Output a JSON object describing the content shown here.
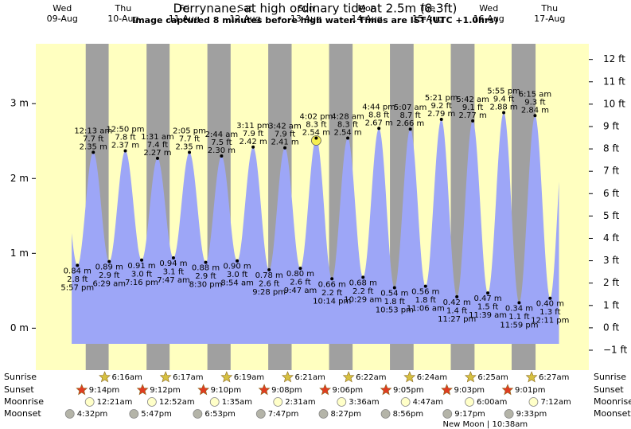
{
  "chart_data": {
    "type": "tide",
    "title": "Derrynane: at high  ordinary tide at 2.5m (8.3ft)",
    "subtitle": "Image captured 8 minutes before high water. Times are IST (UTC +1.0hrs)",
    "ylim": [
      -0.56,
      3.8
    ],
    "yticks": [
      {
        "value": 0,
        "label": "0 m"
      },
      {
        "value": 1,
        "label": "1 m"
      },
      {
        "value": 2,
        "label": "2 m"
      },
      {
        "value": 3,
        "label": "3 m"
      }
    ],
    "y2lim": [
      -1.89,
      12.7
    ],
    "y2ticks": [
      {
        "value": -1,
        "label": "−1 ft"
      },
      {
        "value": 0,
        "label": "0 ft"
      },
      {
        "value": 1,
        "label": "1 ft"
      },
      {
        "value": 2,
        "label": "2 ft"
      },
      {
        "value": 3,
        "label": "3 ft"
      },
      {
        "value": 4,
        "label": "4 ft"
      },
      {
        "value": 5,
        "label": "5 ft"
      },
      {
        "value": 6,
        "label": "6 ft"
      },
      {
        "value": 7,
        "label": "7 ft"
      },
      {
        "value": 8,
        "label": "8 ft"
      },
      {
        "value": 9,
        "label": "9 ft"
      },
      {
        "value": 10,
        "label": "10 ft"
      },
      {
        "value": 11,
        "label": "11 ft"
      },
      {
        "value": 12,
        "label": "12 ft"
      }
    ],
    "row_labels": {
      "sunrise": "Sunrise",
      "sunset": "Sunset",
      "moonrise": "Moonrise",
      "moonset": "Moonset"
    },
    "colors": {
      "day": "#ffffc0",
      "night": "#a0a0a0",
      "water": "#9da6f7",
      "header": "#e00000",
      "sunrise": "#d6c040",
      "sunset": "#e03c20",
      "moonrise": "#ffffc8",
      "moonset": "#b4b4a8"
    },
    "highlight": {
      "day": 4,
      "tide": 2,
      "color": "#f5ef50"
    },
    "days": [
      {
        "weekday": "Wed",
        "date": "09-Aug",
        "sunset": "9:14pm",
        "moonset": "4:32pm",
        "tides": [
          {
            "time": "5:57 pm",
            "height": 0.84,
            "height_label": "0.84 m",
            "feet_label": "2.8 ft"
          }
        ]
      },
      {
        "weekday": "Thu",
        "date": "10-Aug",
        "sunrise": "6:16am",
        "sunset": "9:12pm",
        "moonrise": "12:21am",
        "moonset": "5:47pm",
        "tides": [
          {
            "time": "12:13 am",
            "height": 2.35,
            "height_label": "2.35 m",
            "feet_label": "7.7 ft"
          },
          {
            "time": "6:29 am",
            "height": 0.89,
            "height_label": "0.89 m",
            "feet_label": "2.9 ft"
          },
          {
            "time": "12:50 pm",
            "height": 2.37,
            "height_label": "2.37 m",
            "feet_label": "7.8 ft"
          },
          {
            "time": "7:16 pm",
            "height": 0.91,
            "height_label": "0.91 m",
            "feet_label": "3.0 ft"
          }
        ]
      },
      {
        "weekday": "Fri",
        "date": "11-Aug",
        "sunrise": "6:17am",
        "sunset": "9:10pm",
        "moonrise": "12:52am",
        "moonset": "6:53pm",
        "tides": [
          {
            "time": "1:31 am",
            "height": 2.27,
            "height_label": "2.27 m",
            "feet_label": "7.4 ft"
          },
          {
            "time": "7:47 am",
            "height": 0.94,
            "height_label": "0.94 m",
            "feet_label": "3.1 ft"
          },
          {
            "time": "2:05 pm",
            "height": 2.35,
            "height_label": "2.35 m",
            "feet_label": "7.7 ft"
          },
          {
            "time": "8:30 pm",
            "height": 0.88,
            "height_label": "0.88 m",
            "feet_label": "2.9 ft"
          }
        ]
      },
      {
        "weekday": "Sat",
        "date": "12-Aug",
        "sunrise": "6:19am",
        "sunset": "9:08pm",
        "moonrise": "1:35am",
        "moonset": "7:47pm",
        "tides": [
          {
            "time": "2:44 am",
            "height": 2.3,
            "height_label": "2.30 m",
            "feet_label": "7.5 ft"
          },
          {
            "time": "8:54 am",
            "height": 0.9,
            "height_label": "0.90 m",
            "feet_label": "3.0 ft"
          },
          {
            "time": "3:11 pm",
            "height": 2.42,
            "height_label": "2.42 m",
            "feet_label": "7.9 ft"
          },
          {
            "time": "9:28 pm",
            "height": 0.78,
            "height_label": "0.78 m",
            "feet_label": "2.6 ft"
          }
        ]
      },
      {
        "weekday": "Sun",
        "date": "13-Aug",
        "sunrise": "6:21am",
        "sunset": "9:06pm",
        "moonrise": "2:31am",
        "moonset": "8:27pm",
        "tides": [
          {
            "time": "3:42 am",
            "height": 2.41,
            "height_label": "2.41 m",
            "feet_label": "7.9 ft"
          },
          {
            "time": "9:47 am",
            "height": 0.8,
            "height_label": "0.80 m",
            "feet_label": "2.6 ft"
          },
          {
            "time": "4:02 pm",
            "height": 2.54,
            "height_label": "2.54 m",
            "feet_label": "8.3 ft"
          },
          {
            "time": "10:14 pm",
            "height": 0.66,
            "height_label": "0.66 m",
            "feet_label": "2.2 ft"
          }
        ]
      },
      {
        "weekday": "Mon",
        "date": "14-Aug",
        "sunrise": "6:22am",
        "sunset": "9:05pm",
        "moonrise": "3:36am",
        "moonset": "8:56pm",
        "tides": [
          {
            "time": "4:28 am",
            "height": 2.54,
            "height_label": "2.54 m",
            "feet_label": "8.3 ft"
          },
          {
            "time": "10:29 am",
            "height": 0.68,
            "height_label": "0.68 m",
            "feet_label": "2.2 ft"
          },
          {
            "time": "4:44 pm",
            "height": 2.67,
            "height_label": "2.67 m",
            "feet_label": "8.8 ft"
          },
          {
            "time": "10:53 pm",
            "height": 0.54,
            "height_label": "0.54 m",
            "feet_label": "1.8 ft"
          }
        ]
      },
      {
        "weekday": "Tue",
        "date": "15-Aug",
        "sunrise": "6:24am",
        "sunset": "9:03pm",
        "moonrise": "4:47am",
        "moonset": "9:17pm",
        "tides": [
          {
            "time": "5:07 am",
            "height": 2.66,
            "height_label": "2.66 m",
            "feet_label": "8.7 ft"
          },
          {
            "time": "11:06 am",
            "height": 0.56,
            "height_label": "0.56 m",
            "feet_label": "1.8 ft"
          },
          {
            "time": "5:21 pm",
            "height": 2.79,
            "height_label": "2.79 m",
            "feet_label": "9.2 ft"
          },
          {
            "time": "11:27 pm",
            "height": 0.42,
            "height_label": "0.42 m",
            "feet_label": "1.4 ft"
          }
        ]
      },
      {
        "weekday": "Wed",
        "date": "16-Aug",
        "sunrise": "6:25am",
        "sunset": "9:01pm",
        "moonrise": "6:00am",
        "moonset": "9:33pm",
        "moon_phase": "New Moon | 10:38am",
        "tides": [
          {
            "time": "5:42 am",
            "height": 2.77,
            "height_label": "2.77 m",
            "feet_label": "9.1 ft"
          },
          {
            "time": "11:39 am",
            "height": 0.47,
            "height_label": "0.47 m",
            "feet_label": "1.5 ft"
          },
          {
            "time": "5:55 pm",
            "height": 2.88,
            "height_label": "2.88 m",
            "feet_label": "9.4 ft"
          },
          {
            "time": "11:59 pm",
            "height": 0.34,
            "height_label": "0.34 m",
            "feet_label": "1.1 ft"
          }
        ]
      },
      {
        "weekday": "Thu",
        "date": "17-Aug",
        "sunrise": "6:27am",
        "moonrise": "7:12am",
        "tides": [
          {
            "time": "6:15 am",
            "height": 2.84,
            "height_label": "2.84 m",
            "feet_label": "9.3 ft"
          },
          {
            "time": "12:11 pm",
            "height": 0.4,
            "height_label": "0.40 m",
            "feet_label": "1.3 ft"
          }
        ]
      }
    ]
  }
}
